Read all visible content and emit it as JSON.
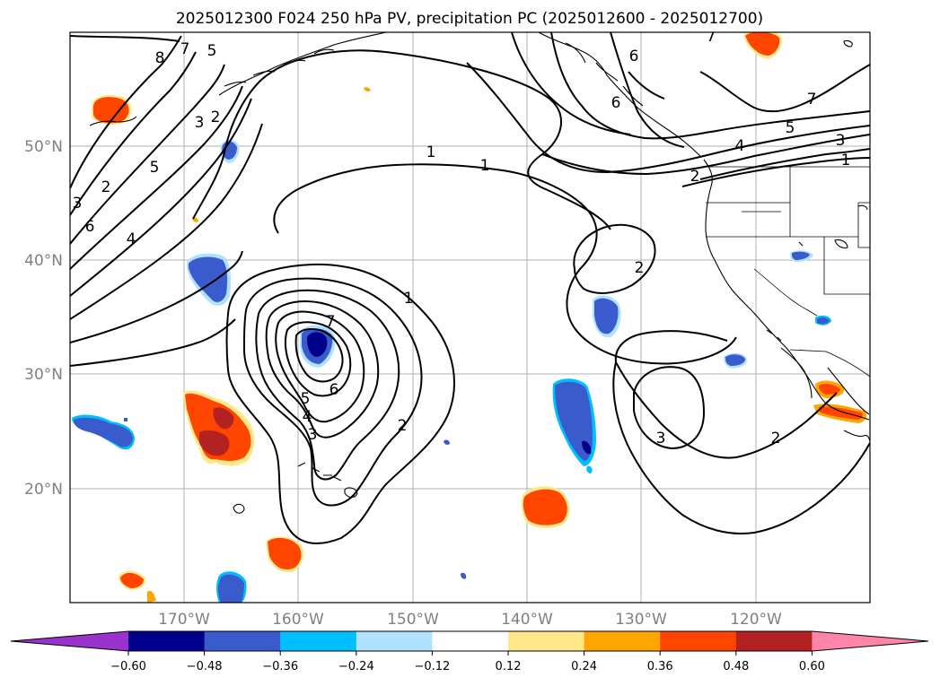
{
  "title": "2025012300 F024 250 hPa PV, precipitation PC (2025012600 - 2025012700)",
  "lat_labels": [
    "50°N",
    "40°N",
    "30°N",
    "20°N"
  ],
  "lon_labels": [
    "170°W",
    "160°W",
    "150°W",
    "140°W",
    "130°W",
    "120°W"
  ],
  "colorbar": {
    "ticks": [
      "−0.60",
      "−0.48",
      "−0.36",
      "−0.24",
      "−0.12",
      "0.12",
      "0.24",
      "0.36",
      "0.48",
      "0.60"
    ],
    "colors": [
      "#9933cc",
      "#00008b",
      "#3a5bcc",
      "#00bfff",
      "#b0e2ff",
      "#ffffff",
      "#ffe88a",
      "#ffa500",
      "#ff4500",
      "#b22222",
      "#ff85a8"
    ]
  },
  "contour_labels": [
    "8",
    "7",
    "3",
    "2",
    "5",
    "6",
    "4",
    "1",
    "7",
    "6",
    "5",
    "4",
    "3",
    "2",
    "1",
    "1",
    "7",
    "5",
    "4",
    "6",
    "2",
    "3",
    "2",
    "3",
    "2",
    "6",
    "7",
    "5",
    "3",
    "2",
    "1"
  ]
}
